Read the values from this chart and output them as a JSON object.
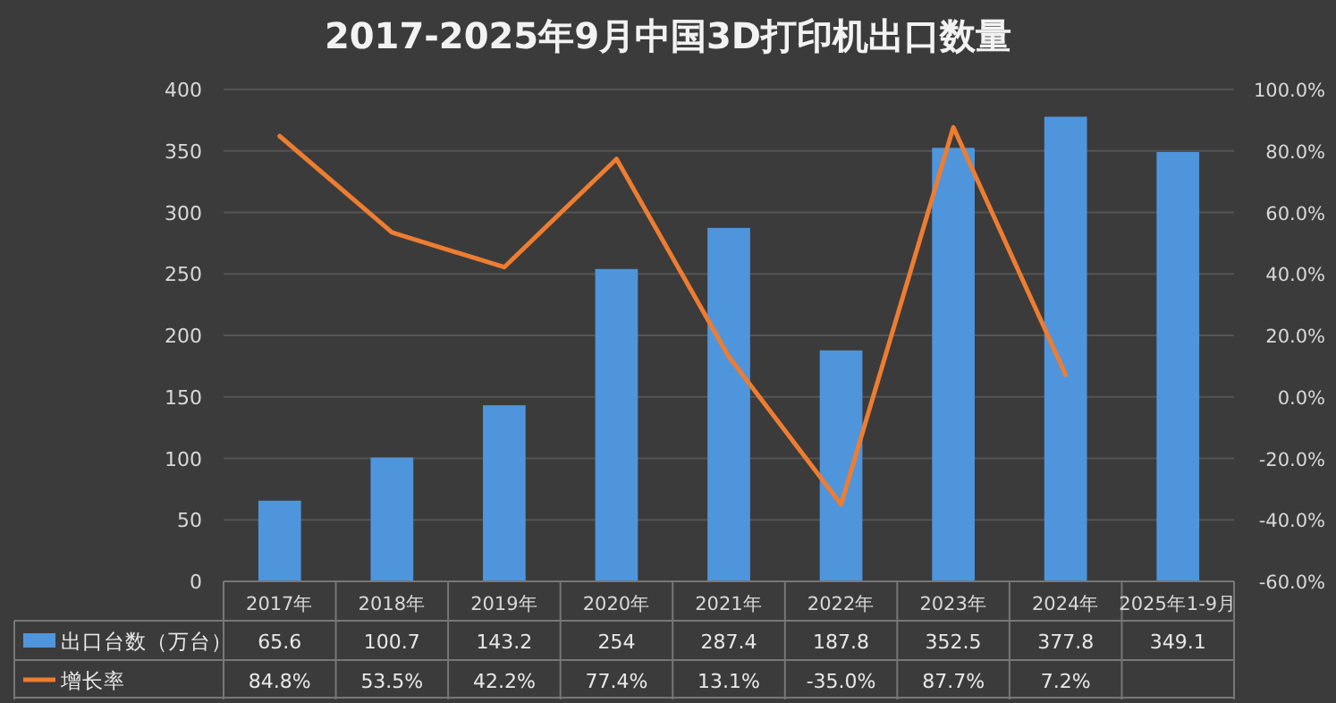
{
  "chart_data": {
    "type": "bar",
    "title": "2017-2025年9月中国3D打印机出口数量",
    "categories": [
      "2017年",
      "2018年",
      "2019年",
      "2020年",
      "2021年",
      "2022年",
      "2023年",
      "2024年",
      "2025年1-9月"
    ],
    "series": [
      {
        "name": "出口台数（万台）",
        "color": "#4f95dc",
        "values": [
          65.6,
          100.7,
          143.2,
          254,
          287.4,
          187.8,
          352.5,
          377.8,
          349.1
        ],
        "value_labels": [
          "65.6",
          "100.7",
          "143.2",
          "254",
          "287.4",
          "187.8",
          "352.5",
          "377.8",
          "349.1"
        ]
      },
      {
        "name": "增长率",
        "type": "line",
        "axis": "y2",
        "color": "#ed7d31",
        "values": [
          84.8,
          53.5,
          42.2,
          77.4,
          13.1,
          -35.0,
          87.7,
          7.2,
          null
        ],
        "value_labels": [
          "84.8%",
          "53.5%",
          "42.2%",
          "77.4%",
          "13.1%",
          "-35.0%",
          "87.7%",
          "7.2%",
          null
        ]
      }
    ],
    "ylim": [
      0,
      400
    ],
    "yticks": [
      0,
      50,
      100,
      150,
      200,
      250,
      300,
      350,
      400
    ],
    "y2lim": [
      -60,
      100
    ],
    "y2ticks": [
      {
        "value": -60,
        "label": "-60.0%"
      },
      {
        "value": -40,
        "label": "-40.0%"
      },
      {
        "value": -20,
        "label": "-20.0%"
      },
      {
        "value": 0,
        "label": "0.0%"
      },
      {
        "value": 20,
        "label": "20.0%"
      },
      {
        "value": 40,
        "label": "40.0%"
      },
      {
        "value": 60,
        "label": "60.0%"
      },
      {
        "value": 80,
        "label": "80.0%"
      },
      {
        "value": 100,
        "label": "100.0%"
      }
    ],
    "grid": "y",
    "legend": "bottom",
    "marker": "none",
    "line_style": "solid"
  }
}
